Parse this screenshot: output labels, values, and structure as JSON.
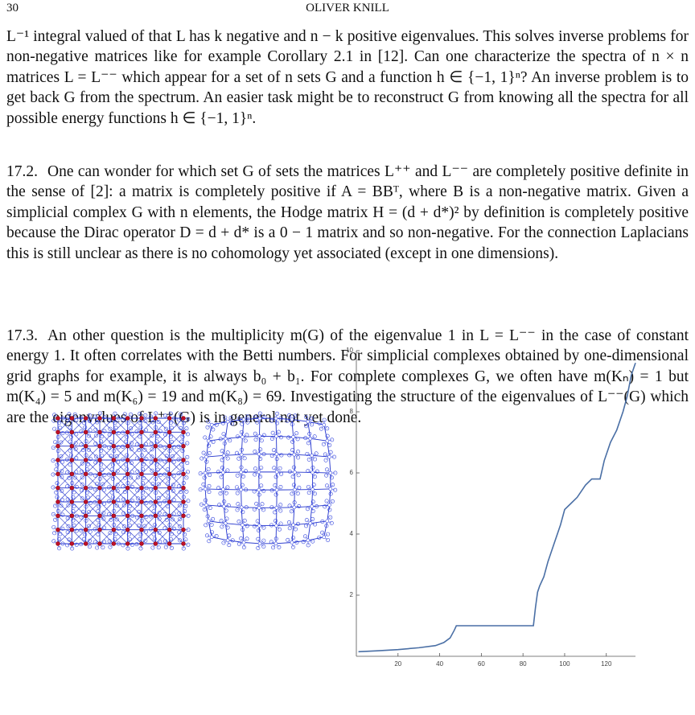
{
  "header": {
    "page_number": "30",
    "author": "OLIVER KNILL"
  },
  "paragraphs": [
    {
      "text": "L⁻¹ integral valued of that L has k negative and n − k positive eigenvalues. This solves inverse problems for non-negative matrices like for example Corollary 2.1 in [12]. Can one characterize the spectra of n × n matrices L = L⁻⁻ which appear for a set of n sets G and a function h ∈ {−1, 1}ⁿ? An inverse problem is to get back G from the spectrum. An easier task might be to reconstruct G from knowing all the spectra for all possible energy functions h ∈ {−1, 1}ⁿ."
    },
    {
      "label": "17.2.",
      "text": "One can wonder for which set G of sets the matrices L⁺⁺ and L⁻⁻ are completely positive definite in the sense of [2]: a matrix is completely positive if A = BBᵀ, where B is a non-negative matrix. Given a simplicial complex G with n elements, the Hodge matrix H = (d + d*)² by definition is completely positive because the Dirac operator D = d + d* is a 0 − 1 matrix and so non-negative. For the connection Laplacians this is still unclear as there is no cohomology yet associated (except in one dimensions)."
    },
    {
      "label": "17.3.",
      "text": "An other question is the multiplicity m(G) of the eigenvalue 1 in L = L⁻⁻ in the case of constant energy 1. It often correlates with the Betti numbers. For simplicial complexes obtained by one-dimensional grid graphs for example, it is always b₀ + b₁. For complete complexes G, we often have m(Kₙ) = 1 but m(K₄) = 5 and m(K₆) = 19 and m(K₈) = 69. Investigating the structure of the eigenvalues of L⁻⁻(G) which are the eigenvalues of L⁺⁺(G) is in general not yet done."
    }
  ],
  "chart_data": {
    "type": "line",
    "color": "#4a6fa5",
    "x": [
      1,
      10,
      20,
      30,
      38,
      42,
      45,
      47,
      48,
      60,
      70,
      80,
      85,
      86,
      87,
      88,
      90,
      92,
      95,
      98,
      100,
      103,
      106,
      110,
      113,
      117,
      119,
      122,
      125,
      128,
      130,
      132,
      134
    ],
    "series": [
      {
        "values": [
          0.15,
          0.18,
          0.22,
          0.28,
          0.35,
          0.45,
          0.6,
          0.85,
          1,
          1,
          1,
          1,
          1,
          1.6,
          2.1,
          2.3,
          2.6,
          3.1,
          3.7,
          4.3,
          4.8,
          5,
          5.2,
          5.6,
          5.8,
          5.8,
          6.4,
          7,
          7.4,
          8,
          8.5,
          9.2,
          9.6
        ]
      }
    ],
    "xlim": [
      0,
      134
    ],
    "ylim": [
      0,
      10
    ],
    "xticks": [
      20,
      40,
      60,
      80,
      100,
      120
    ],
    "yticks": [
      2,
      4,
      6,
      8,
      10
    ]
  }
}
